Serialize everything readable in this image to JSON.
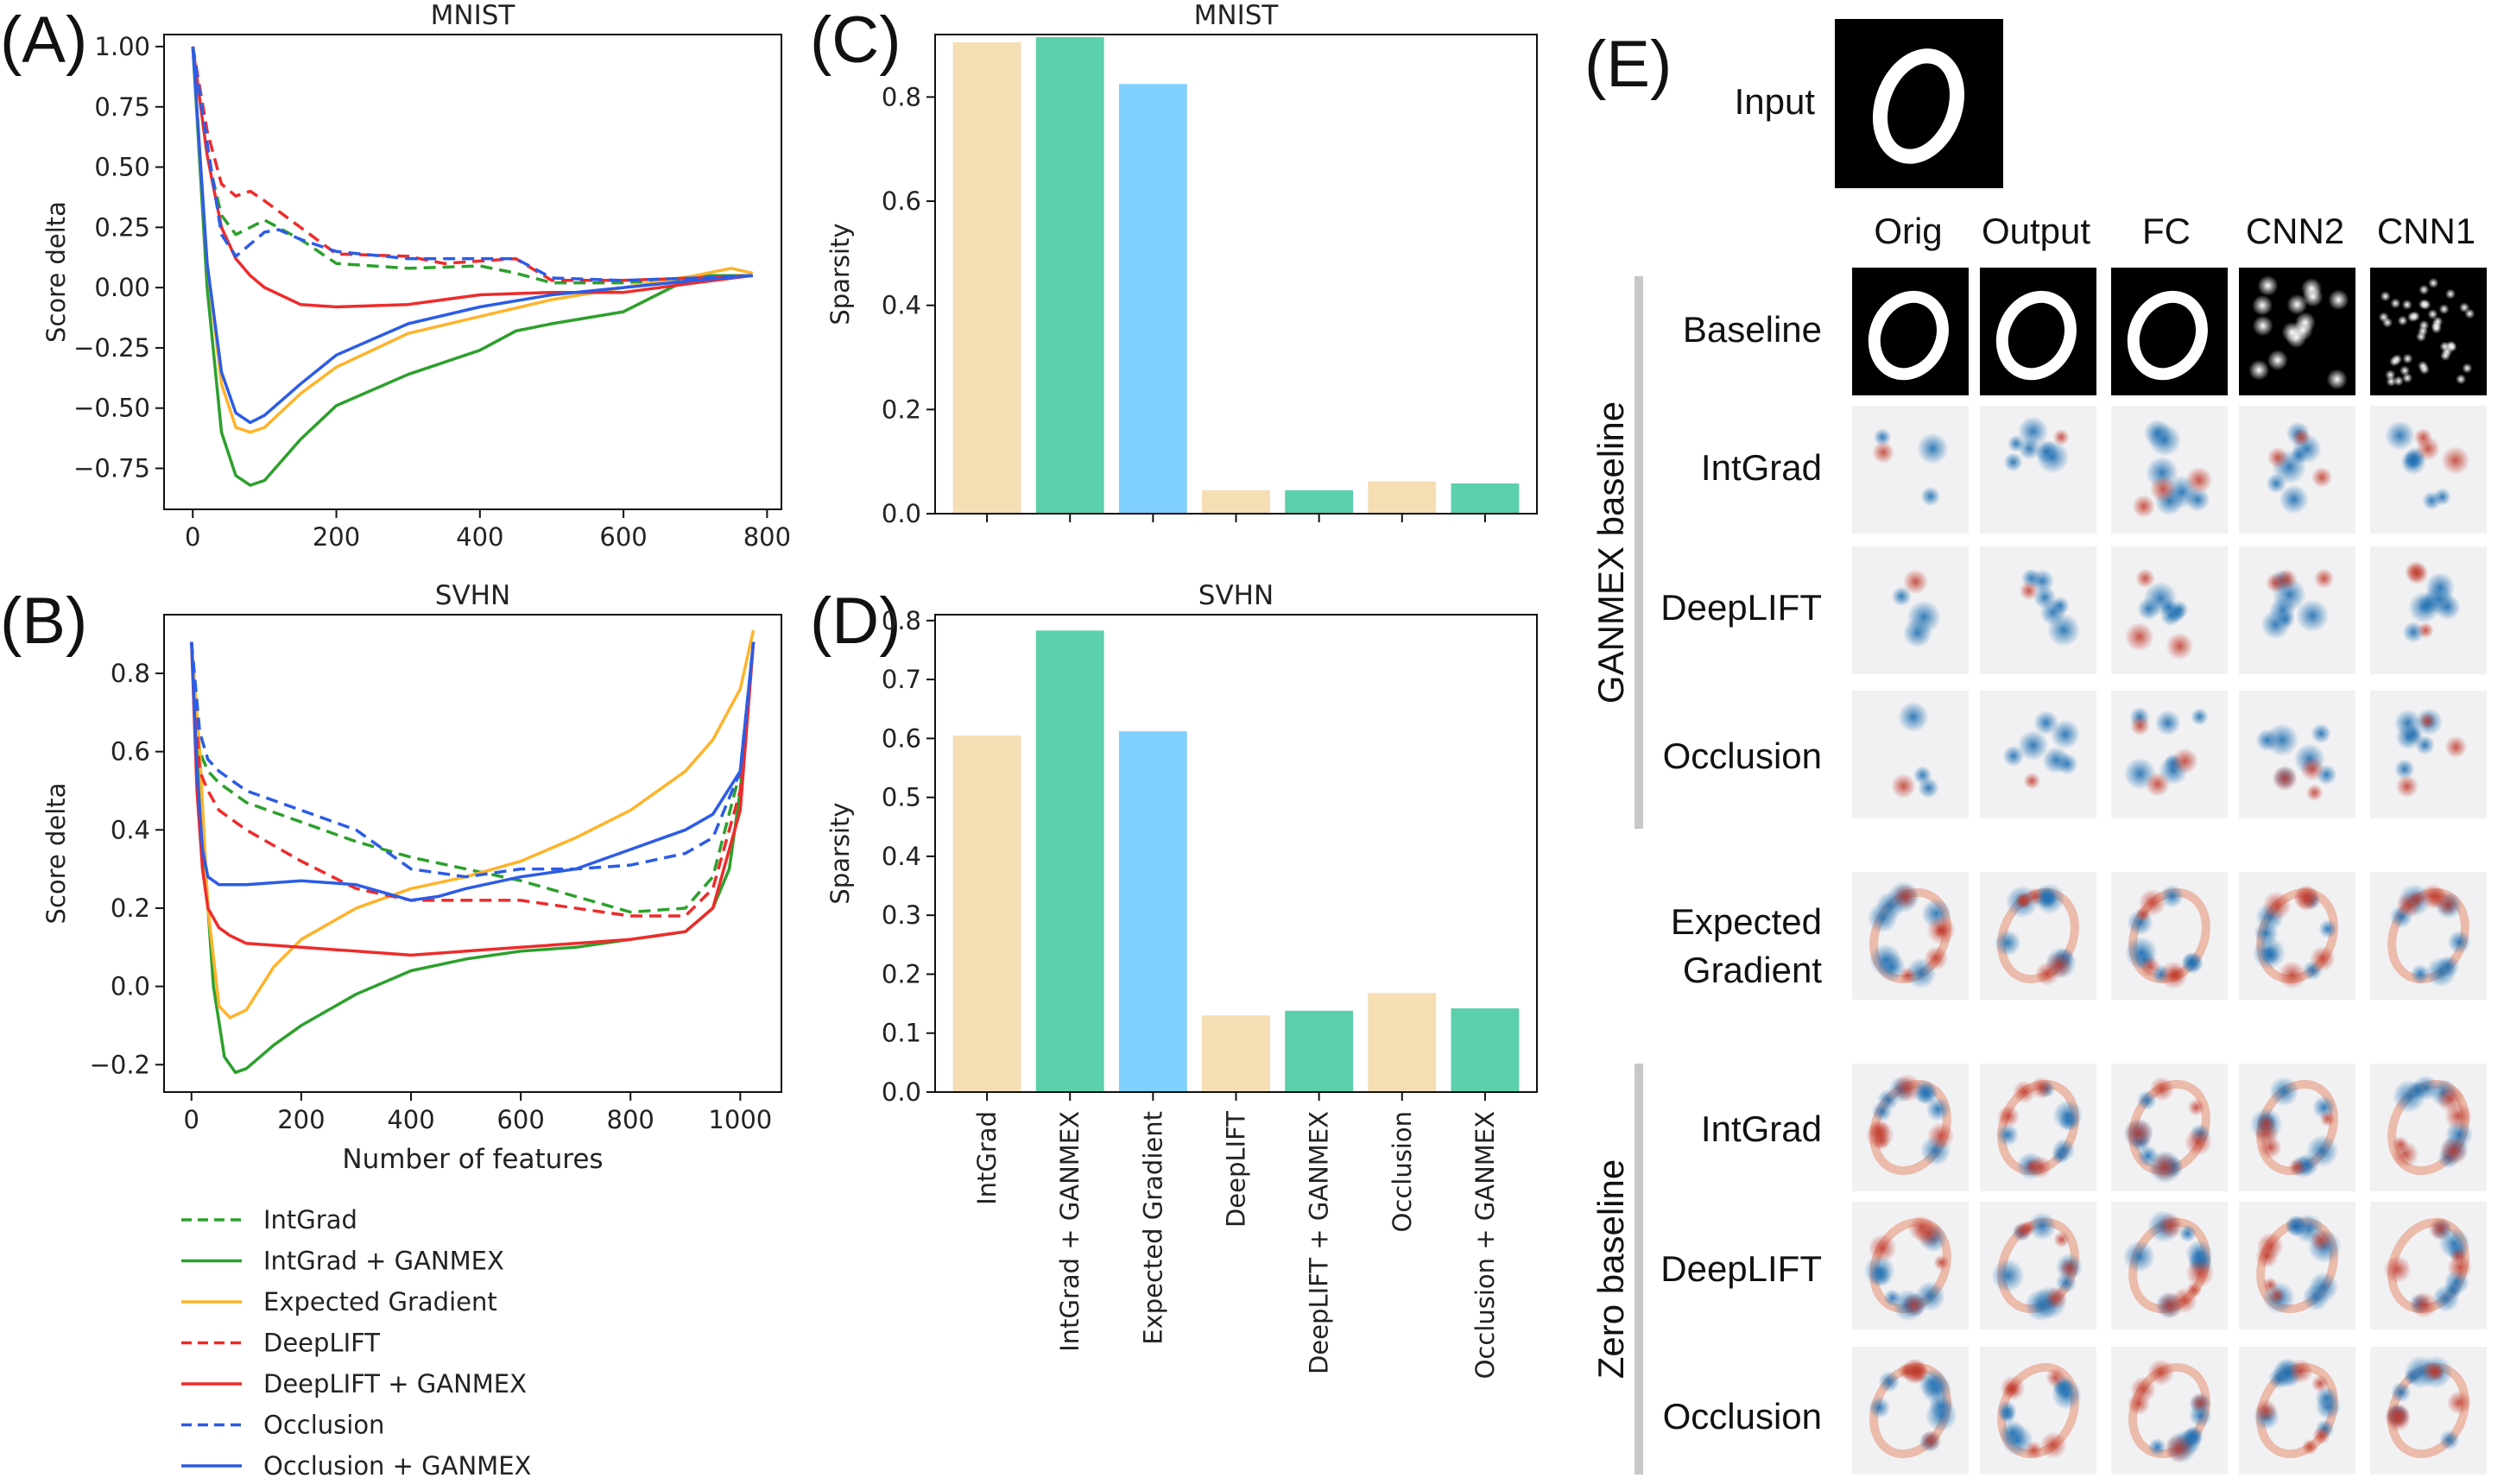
{
  "panels": {
    "A": "(A)",
    "B": "(B)",
    "C": "(C)",
    "D": "(D)",
    "E": "(E)"
  },
  "colors": {
    "green": "#2ca02c",
    "orange": "#ffb32a",
    "red": "#ee2b2b",
    "blue": "#2c5ce6",
    "bar_tan": "#f5deb3",
    "bar_teal": "#5ccfad",
    "bar_sky": "#7fcfff"
  },
  "chart_data": [
    {
      "id": "A",
      "type": "line",
      "title": "MNIST",
      "xlabel": "",
      "ylabel": "Score delta",
      "xlim": [
        -40,
        820
      ],
      "ylim": [
        -0.92,
        1.05
      ],
      "xticks": [
        0,
        200,
        400,
        600,
        800
      ],
      "yticks": [
        -0.75,
        -0.5,
        -0.25,
        0.0,
        0.25,
        0.5,
        0.75,
        1.0
      ],
      "ytick_labels": [
        "−0.75",
        "−0.50",
        "−0.25",
        "0.00",
        "0.25",
        "0.50",
        "0.75",
        "1.00"
      ],
      "series": [
        {
          "name": "IntGrad",
          "color": "green",
          "dash": true,
          "x": [
            0,
            20,
            40,
            60,
            80,
            100,
            150,
            200,
            300,
            400,
            450,
            500,
            600,
            700,
            780
          ],
          "y": [
            1.0,
            0.55,
            0.3,
            0.22,
            0.25,
            0.28,
            0.2,
            0.1,
            0.08,
            0.09,
            0.06,
            0.02,
            0.02,
            0.04,
            0.05
          ]
        },
        {
          "name": "IntGrad + GANMEX",
          "color": "green",
          "dash": false,
          "x": [
            0,
            20,
            40,
            60,
            80,
            100,
            150,
            200,
            300,
            400,
            450,
            500,
            600,
            700,
            780
          ],
          "y": [
            1.0,
            0.0,
            -0.6,
            -0.78,
            -0.82,
            -0.8,
            -0.63,
            -0.49,
            -0.36,
            -0.26,
            -0.18,
            -0.15,
            -0.1,
            0.05,
            0.05
          ]
        },
        {
          "name": "Expected Gradient",
          "color": "orange",
          "dash": false,
          "x": [
            0,
            20,
            40,
            60,
            80,
            100,
            150,
            200,
            300,
            400,
            500,
            600,
            700,
            750,
            780
          ],
          "y": [
            1.0,
            0.1,
            -0.4,
            -0.58,
            -0.6,
            -0.58,
            -0.44,
            -0.33,
            -0.19,
            -0.12,
            -0.05,
            0.0,
            0.05,
            0.08,
            0.06
          ]
        },
        {
          "name": "DeepLIFT",
          "color": "red",
          "dash": true,
          "x": [
            0,
            20,
            40,
            60,
            80,
            100,
            150,
            200,
            300,
            350,
            400,
            450,
            500,
            600,
            700,
            780
          ],
          "y": [
            1.0,
            0.65,
            0.43,
            0.38,
            0.4,
            0.36,
            0.25,
            0.14,
            0.13,
            0.1,
            0.11,
            0.12,
            0.03,
            0.03,
            0.04,
            0.05
          ]
        },
        {
          "name": "DeepLIFT + GANMEX",
          "color": "red",
          "dash": false,
          "x": [
            0,
            20,
            40,
            60,
            80,
            100,
            150,
            200,
            300,
            400,
            500,
            600,
            700,
            780
          ],
          "y": [
            1.0,
            0.55,
            0.25,
            0.12,
            0.05,
            0.0,
            -0.07,
            -0.08,
            -0.07,
            -0.03,
            -0.02,
            -0.02,
            0.02,
            0.05
          ]
        },
        {
          "name": "Occlusion",
          "color": "blue",
          "dash": true,
          "x": [
            0,
            20,
            40,
            60,
            80,
            100,
            120,
            150,
            200,
            300,
            400,
            450,
            500,
            600,
            700,
            780
          ],
          "y": [
            1.0,
            0.6,
            0.22,
            0.13,
            0.18,
            0.23,
            0.24,
            0.2,
            0.15,
            0.12,
            0.12,
            0.12,
            0.04,
            0.03,
            0.04,
            0.05
          ]
        },
        {
          "name": "Occlusion + GANMEX",
          "color": "blue",
          "dash": false,
          "x": [
            0,
            20,
            40,
            60,
            80,
            100,
            150,
            200,
            300,
            400,
            500,
            600,
            700,
            780
          ],
          "y": [
            1.0,
            0.1,
            -0.35,
            -0.52,
            -0.56,
            -0.53,
            -0.4,
            -0.28,
            -0.15,
            -0.08,
            -0.03,
            0.0,
            0.03,
            0.05
          ]
        }
      ]
    },
    {
      "id": "B",
      "type": "line",
      "title": "SVHN",
      "xlabel": "Number of features",
      "ylabel": "Score delta",
      "xlim": [
        -50,
        1075
      ],
      "ylim": [
        -0.27,
        0.95
      ],
      "xticks": [
        0,
        200,
        400,
        600,
        800,
        1000
      ],
      "yticks": [
        -0.2,
        0.0,
        0.2,
        0.4,
        0.6,
        0.8
      ],
      "ytick_labels": [
        "−0.2",
        "0.0",
        "0.2",
        "0.4",
        "0.6",
        "0.8"
      ],
      "series": [
        {
          "name": "IntGrad",
          "color": "green",
          "dash": true,
          "x": [
            0,
            15,
            30,
            50,
            100,
            200,
            300,
            400,
            500,
            600,
            700,
            800,
            900,
            950,
            1000,
            1024
          ],
          "y": [
            0.88,
            0.6,
            0.55,
            0.52,
            0.47,
            0.42,
            0.37,
            0.33,
            0.3,
            0.27,
            0.23,
            0.19,
            0.2,
            0.28,
            0.55,
            0.88
          ]
        },
        {
          "name": "IntGrad + GANMEX",
          "color": "green",
          "dash": false,
          "x": [
            0,
            20,
            40,
            60,
            80,
            100,
            150,
            200,
            300,
            400,
            500,
            600,
            700,
            800,
            900,
            950,
            980,
            1000,
            1024
          ],
          "y": [
            0.88,
            0.4,
            0.0,
            -0.18,
            -0.22,
            -0.21,
            -0.15,
            -0.1,
            -0.02,
            0.04,
            0.07,
            0.09,
            0.1,
            0.12,
            0.14,
            0.2,
            0.3,
            0.5,
            0.88
          ]
        },
        {
          "name": "Expected Gradient",
          "color": "orange",
          "dash": false,
          "x": [
            0,
            15,
            30,
            50,
            70,
            100,
            150,
            200,
            300,
            400,
            500,
            600,
            700,
            800,
            900,
            950,
            1000,
            1024
          ],
          "y": [
            0.88,
            0.6,
            0.2,
            -0.05,
            -0.08,
            -0.06,
            0.05,
            0.12,
            0.2,
            0.25,
            0.28,
            0.32,
            0.38,
            0.45,
            0.55,
            0.63,
            0.76,
            0.91
          ]
        },
        {
          "name": "DeepLIFT",
          "color": "red",
          "dash": true,
          "x": [
            0,
            15,
            30,
            50,
            100,
            200,
            300,
            400,
            500,
            600,
            700,
            800,
            900,
            950,
            1000,
            1024
          ],
          "y": [
            0.88,
            0.55,
            0.5,
            0.45,
            0.4,
            0.32,
            0.25,
            0.22,
            0.22,
            0.22,
            0.2,
            0.18,
            0.18,
            0.25,
            0.5,
            0.88
          ]
        },
        {
          "name": "DeepLIFT + GANMEX",
          "color": "red",
          "dash": false,
          "x": [
            0,
            10,
            20,
            30,
            50,
            70,
            100,
            200,
            300,
            400,
            500,
            600,
            700,
            800,
            900,
            950,
            1000,
            1024
          ],
          "y": [
            0.88,
            0.5,
            0.3,
            0.2,
            0.15,
            0.13,
            0.11,
            0.1,
            0.09,
            0.08,
            0.09,
            0.1,
            0.11,
            0.12,
            0.14,
            0.2,
            0.45,
            0.88
          ]
        },
        {
          "name": "Occlusion",
          "color": "blue",
          "dash": true,
          "x": [
            0,
            15,
            30,
            50,
            100,
            200,
            300,
            350,
            400,
            500,
            600,
            700,
            800,
            900,
            950,
            1000,
            1024
          ],
          "y": [
            0.88,
            0.65,
            0.58,
            0.55,
            0.5,
            0.45,
            0.4,
            0.35,
            0.3,
            0.28,
            0.3,
            0.3,
            0.31,
            0.34,
            0.38,
            0.55,
            0.88
          ]
        },
        {
          "name": "Occlusion + GANMEX",
          "color": "blue",
          "dash": false,
          "x": [
            0,
            10,
            20,
            30,
            50,
            100,
            200,
            300,
            400,
            450,
            500,
            600,
            700,
            800,
            900,
            950,
            1000,
            1024
          ],
          "y": [
            0.88,
            0.55,
            0.35,
            0.28,
            0.26,
            0.26,
            0.27,
            0.26,
            0.22,
            0.23,
            0.25,
            0.28,
            0.3,
            0.35,
            0.4,
            0.44,
            0.55,
            0.88
          ]
        }
      ]
    },
    {
      "id": "C",
      "type": "bar",
      "title": "MNIST",
      "xlabel": "",
      "ylabel": "Sparsity",
      "ylim": [
        0,
        0.92
      ],
      "yticks": [
        0.0,
        0.2,
        0.4,
        0.6,
        0.8
      ],
      "ytick_labels": [
        "0.0",
        "0.2",
        "0.4",
        "0.6",
        "0.8"
      ],
      "categories": [
        "IntGrad",
        "IntGrad + GANMEX",
        "Expected Gradient",
        "DeepLIFT",
        "DeepLIFT + GANMEX",
        "Occlusion",
        "Occlusion + GANMEX"
      ],
      "values": [
        0.905,
        0.915,
        0.825,
        0.045,
        0.045,
        0.062,
        0.058
      ],
      "bar_colors": [
        "bar_tan",
        "bar_teal",
        "bar_sky",
        "bar_tan",
        "bar_teal",
        "bar_tan",
        "bar_teal"
      ]
    },
    {
      "id": "D",
      "type": "bar",
      "title": "SVHN",
      "xlabel": "",
      "ylabel": "Sparsity",
      "ylim": [
        0,
        0.81
      ],
      "yticks": [
        0.0,
        0.1,
        0.2,
        0.3,
        0.4,
        0.5,
        0.6,
        0.7,
        0.8
      ],
      "ytick_labels": [
        "0.0",
        "0.1",
        "0.2",
        "0.3",
        "0.4",
        "0.5",
        "0.6",
        "0.7",
        "0.8"
      ],
      "categories": [
        "IntGrad",
        "IntGrad + GANMEX",
        "Expected Gradient",
        "DeepLIFT",
        "DeepLIFT + GANMEX",
        "Occlusion",
        "Occlusion + GANMEX"
      ],
      "values": [
        0.605,
        0.783,
        0.612,
        0.13,
        0.138,
        0.168,
        0.142
      ],
      "bar_colors": [
        "bar_tan",
        "bar_teal",
        "bar_sky",
        "bar_tan",
        "bar_teal",
        "bar_tan",
        "bar_teal"
      ]
    }
  ],
  "legend": {
    "entries": [
      {
        "label": "IntGrad",
        "color": "green",
        "dash": true
      },
      {
        "label": "IntGrad + GANMEX",
        "color": "green",
        "dash": false
      },
      {
        "label": "Expected Gradient",
        "color": "orange",
        "dash": false
      },
      {
        "label": "DeepLIFT",
        "color": "red",
        "dash": true
      },
      {
        "label": "DeepLIFT + GANMEX",
        "color": "red",
        "dash": false
      },
      {
        "label": "Occlusion",
        "color": "blue",
        "dash": true
      },
      {
        "label": "Occlusion + GANMEX",
        "color": "blue",
        "dash": false
      }
    ]
  },
  "grid_panel": {
    "input_label": "Input",
    "columns": [
      "Orig",
      "Output",
      "FC",
      "CNN2",
      "CNN1"
    ],
    "group_ganmex": "GANMEX baseline",
    "group_zero": "Zero baseline",
    "rows_ganmex": [
      "Baseline",
      "IntGrad",
      "DeepLIFT",
      "Occlusion"
    ],
    "row_expected": [
      "Expected",
      "Gradient"
    ],
    "rows_zero": [
      "IntGrad",
      "DeepLIFT",
      "Occlusion"
    ]
  }
}
